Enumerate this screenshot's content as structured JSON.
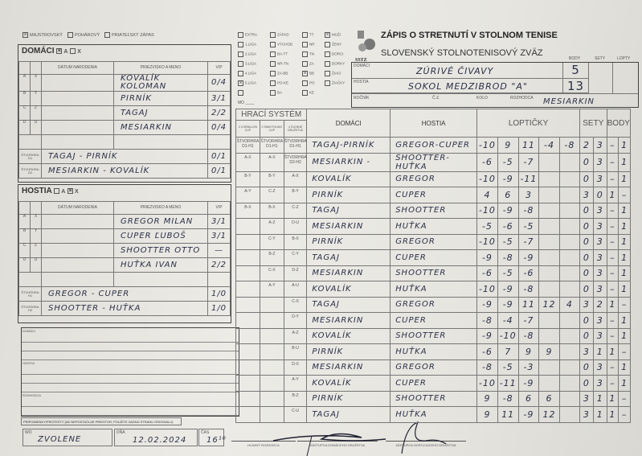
{
  "match_type": {
    "options": [
      {
        "label": "MAJSTROVSKÝ",
        "checked": true
      },
      {
        "label": "POHÁROVÝ",
        "checked": false
      },
      {
        "label": "PRIATEĽSKÝ ZÁPAS",
        "checked": false
      }
    ]
  },
  "title": "ZÁPIS O STRETNUTÍ V STOLNOM TENISE",
  "subtitle": "SLOVENSKÝ STOLNOTENISOVÝ ZVÄZ",
  "logo_text": "SSTZ",
  "leagues": [
    [
      {
        "label": "EXTRA",
        "checked": false
      },
      {
        "label": "1.LIGA",
        "checked": false
      },
      {
        "label": "2.LIGA",
        "checked": false
      },
      {
        "label": "3.LIGA",
        "checked": false
      },
      {
        "label": "4.LIGA",
        "checked": false
      },
      {
        "label": "5.LIGA",
        "checked": true
      },
      {
        "label": "",
        "checked": false
      }
    ],
    [
      {
        "label": "ZÁPAD",
        "checked": false
      },
      {
        "label": "VÝCHOD",
        "checked": false
      },
      {
        "label": "BA-TT",
        "checked": false
      },
      {
        "label": "NR-TN",
        "checked": false
      },
      {
        "label": "ZA-BB",
        "checked": false
      },
      {
        "label": "PO-KE",
        "checked": false
      },
      {
        "label": "BA",
        "checked": false
      }
    ],
    [
      {
        "label": "TT",
        "checked": false
      },
      {
        "label": "NR",
        "checked": false
      },
      {
        "label": "TN",
        "checked": false
      },
      {
        "label": "ZA",
        "checked": false
      },
      {
        "label": "BB",
        "checked": true
      },
      {
        "label": "PO",
        "checked": false
      },
      {
        "label": "KE",
        "checked": false
      }
    ],
    [
      {
        "label": "MUŽI",
        "checked": true
      },
      {
        "label": "ŽENY",
        "checked": false
      },
      {
        "label": "DORCI",
        "checked": false
      },
      {
        "label": "DORKY",
        "checked": false
      },
      {
        "label": "ŽIACI",
        "checked": false
      },
      {
        "label": "ŽIAČKY",
        "checked": false
      }
    ]
  ],
  "mo_label": "MO",
  "summary": {
    "headers": {
      "body": "BODY",
      "sety": "SETY",
      "lopty": "LOPTY"
    },
    "home_label": "DOMÁCI",
    "home_team": "ZÚRIVÉ ČIVAVY",
    "home_points": "5",
    "away_label": "HOSTIA",
    "away_team": "SOKOL MEDZIBROD \"A\"",
    "away_points": "13",
    "rocnik_label": "ROČNÍK",
    "cz_label": "Č.Z.",
    "kolo_label": "KOLO",
    "rozhodca_label": "ROZHODCA",
    "rozhodca": "MESIARKIN"
  },
  "home": {
    "title": "DOMÁCI",
    "opt_a": "A",
    "opt_x": "X",
    "a_checked": true,
    "x_checked": false,
    "col_date": "DÁTUM NARODENIA",
    "col_name": "PRIEZVISKO A MENO",
    "col_vp": "V/P",
    "players": [
      {
        "l1": "A",
        "l2": "X",
        "name": "KOVALÍK KOLOMAN",
        "vp": "0/4"
      },
      {
        "l1": "B",
        "l2": "Y",
        "name": "PIRNÍK",
        "vp": "3/1"
      },
      {
        "l1": "C",
        "l2": "Z",
        "name": "TAGAJ",
        "vp": "2/2"
      },
      {
        "l1": "D",
        "l2": "U",
        "name": "MESIARKIN",
        "vp": "0/4"
      }
    ],
    "doubles": [
      {
        "label": "ŠTVORHRA D1",
        "pair": "TAGAJ - PIRNÍK",
        "vp": "0/1"
      },
      {
        "label": "ŠTVORHRA D2",
        "pair": "MESIARKIN - KOVALÍK",
        "vp": "0/1"
      }
    ]
  },
  "away": {
    "title": "HOSTIA",
    "opt_a": "A",
    "opt_x": "X",
    "a_checked": false,
    "x_checked": true,
    "col_date": "DÁTUM NARODENIA",
    "col_name": "PRIEZVISKO A MENO",
    "col_vp": "V/P",
    "players": [
      {
        "l1": "A",
        "l2": "X",
        "name": "GREGOR MILAN",
        "vp": "3/1"
      },
      {
        "l1": "B",
        "l2": "Y",
        "name": "CUPER ĽUBOŠ",
        "vp": "3/1"
      },
      {
        "l1": "C",
        "l2": "Z",
        "name": "SHOOTTER OTTO",
        "vp": "—"
      },
      {
        "l1": "D",
        "l2": "U",
        "name": "HUŤKA IVAN",
        "vp": "2/2"
      }
    ],
    "doubles": [
      {
        "label": "ŠTVORHRA H1",
        "pair": "GREGOR - CUPER",
        "vp": "1/0"
      },
      {
        "label": "ŠTVORHRA H2",
        "pair": "SHOOTTER - HUŤKA",
        "vp": "1/0"
      }
    ]
  },
  "notes": {
    "domaci": "DOMÁCI",
    "hostia": "HOSTIA",
    "rozhodca": "ROZHODCA",
    "protest": "PRIPOMIENKY/PROTESTY (AK NEPOSTAČUJE PRIESTOR, POUŽITE ZADNÚ STRANU ORIGINÁLU)"
  },
  "footer": {
    "wo_label": "WO",
    "wo_value": "ZVOLENE",
    "date_label": "DŇA",
    "date": "12.02.2024",
    "time_label": "ČAS",
    "time": "16¹⁰",
    "sig1": "HLAVNÝ ROZHODCA",
    "sig2": "ZÁSTUPCA DOMÁCEHO DRUŽSTVA",
    "sig3": "ZÁSTUPCA HOSTUJÚCEHO DRUŽSTVA"
  },
  "matches": {
    "system_label": "HRACÍ SYSTÉM",
    "sys_heads": [
      "2 CORBILLON CUP",
      "2 SWAYTHLING CUP",
      "4 ČLENNÉ DRUŽSTVÁ"
    ],
    "col_home": "DOMÁCI",
    "col_away": "HOSTIA",
    "col_lopty": "LOPTIČKY",
    "col_sety": "SETY",
    "col_body": "BODY",
    "rows": [
      {
        "s1": "ŠTVORHRA D1-H1",
        "s2": "ŠTVORHRA D1-H1",
        "s3": "ŠTVORHRA D1-H1",
        "home": "TAGAJ-PIRNÍK",
        "away": "GREGOR-CUPER",
        "balls": [
          "-10",
          "9",
          "11",
          "-4",
          "-8"
        ],
        "sets": [
          "2",
          "3"
        ],
        "pts": [
          "–",
          "1"
        ]
      },
      {
        "s1": "A-X",
        "s2": "A-X",
        "s3": "ŠTVORHRA D2-H2",
        "home": "MESIARKIN -",
        "away": "SHOOTTER-HUŤKA",
        "balls": [
          "-6",
          "-5",
          "-7",
          "",
          ""
        ],
        "sets": [
          "0",
          "3"
        ],
        "pts": [
          "–",
          "1"
        ]
      },
      {
        "s1": "B-Y",
        "s2": "B-Y",
        "s3": "A-X",
        "home": "KOVALÍK",
        "away": "GREGOR",
        "balls": [
          "-10",
          "-9",
          "-11",
          "",
          ""
        ],
        "sets": [
          "0",
          "3"
        ],
        "pts": [
          "–",
          "1"
        ]
      },
      {
        "s1": "A-Y",
        "s2": "C-Z",
        "s3": "B-Y",
        "home": "PIRNÍK",
        "away": "CUPER",
        "balls": [
          "4",
          "6",
          "3",
          "",
          ""
        ],
        "sets": [
          "3",
          "0"
        ],
        "pts": [
          "1",
          "–"
        ]
      },
      {
        "s1": "B-X",
        "s2": "B-X",
        "s3": "C-Z",
        "home": "TAGAJ",
        "away": "SHOOTTER",
        "balls": [
          "-10",
          "-9",
          "-8",
          "",
          ""
        ],
        "sets": [
          "0",
          "3"
        ],
        "pts": [
          "–",
          "1"
        ]
      },
      {
        "s1": "",
        "s2": "A-Z",
        "s3": "D-U",
        "home": "MESIARKIN",
        "away": "HUŤKA",
        "balls": [
          "-5",
          "-6",
          "-5",
          "",
          ""
        ],
        "sets": [
          "0",
          "3"
        ],
        "pts": [
          "–",
          "1"
        ]
      },
      {
        "s1": "",
        "s2": "C-Y",
        "s3": "B-X",
        "home": "PIRNÍK",
        "away": "GREGOR",
        "balls": [
          "-10",
          "-5",
          "-7",
          "",
          ""
        ],
        "sets": [
          "0",
          "3"
        ],
        "pts": [
          "–",
          "1"
        ]
      },
      {
        "s1": "",
        "s2": "B-Z",
        "s3": "C-Y",
        "home": "TAGAJ",
        "away": "CUPER",
        "balls": [
          "-9",
          "-8",
          "-9",
          "",
          ""
        ],
        "sets": [
          "0",
          "3"
        ],
        "pts": [
          "–",
          "1"
        ]
      },
      {
        "s1": "",
        "s2": "C-X",
        "s3": "D-Z",
        "home": "MESIARKIN",
        "away": "SHOOTTER",
        "balls": [
          "-6",
          "-5",
          "-6",
          "",
          ""
        ],
        "sets": [
          "0",
          "3"
        ],
        "pts": [
          "–",
          "1"
        ]
      },
      {
        "s1": "",
        "s2": "A-Y",
        "s3": "A-U",
        "home": "KOVALÍK",
        "away": "HUŤKA",
        "balls": [
          "-10",
          "-9",
          "-8",
          "",
          ""
        ],
        "sets": [
          "0",
          "3"
        ],
        "pts": [
          "–",
          "1"
        ]
      },
      {
        "s1": "",
        "s2": "",
        "s3": "C-X",
        "home": "TAGAJ",
        "away": "GREGOR",
        "balls": [
          "-9",
          "-9",
          "11",
          "12",
          "4"
        ],
        "sets": [
          "3",
          "2"
        ],
        "pts": [
          "1",
          "–"
        ]
      },
      {
        "s1": "",
        "s2": "",
        "s3": "D-Y",
        "home": "MESIARKIN",
        "away": "CUPER",
        "balls": [
          "-8",
          "-4",
          "-7",
          "",
          ""
        ],
        "sets": [
          "0",
          "3"
        ],
        "pts": [
          "–",
          "1"
        ]
      },
      {
        "s1": "",
        "s2": "",
        "s3": "A-Z",
        "home": "KOVALÍK",
        "away": "SHOOTTER",
        "balls": [
          "-9",
          "-10",
          "-8",
          "",
          ""
        ],
        "sets": [
          "0",
          "3"
        ],
        "pts": [
          "–",
          "1"
        ]
      },
      {
        "s1": "",
        "s2": "",
        "s3": "B-U",
        "home": "PIRNÍK",
        "away": "HUŤKA",
        "balls": [
          "-6",
          "7",
          "9",
          "9",
          ""
        ],
        "sets": [
          "3",
          "1"
        ],
        "pts": [
          "1",
          "–"
        ]
      },
      {
        "s1": "",
        "s2": "",
        "s3": "D-X",
        "home": "MESIARKIN",
        "away": "GREGOR",
        "balls": [
          "-8",
          "-5",
          "-3",
          "",
          ""
        ],
        "sets": [
          "0",
          "3"
        ],
        "pts": [
          "–",
          "1"
        ]
      },
      {
        "s1": "",
        "s2": "",
        "s3": "A-Y",
        "home": "KOVALÍK",
        "away": "CUPER",
        "balls": [
          "-10",
          "-11",
          "-9",
          "",
          ""
        ],
        "sets": [
          "0",
          "3"
        ],
        "pts": [
          "–",
          "1"
        ]
      },
      {
        "s1": "",
        "s2": "",
        "s3": "B-Z",
        "home": "PIRNÍK",
        "away": "SHOOTTER",
        "balls": [
          "9",
          "-8",
          "6",
          "6",
          ""
        ],
        "sets": [
          "3",
          "1"
        ],
        "pts": [
          "1",
          "–"
        ]
      },
      {
        "s1": "",
        "s2": "",
        "s3": "C-U",
        "home": "TAGAJ",
        "away": "HUŤKA",
        "balls": [
          "9",
          "11",
          "-9",
          "12",
          ""
        ],
        "sets": [
          "3",
          "1"
        ],
        "pts": [
          "1",
          "–"
        ]
      }
    ]
  }
}
